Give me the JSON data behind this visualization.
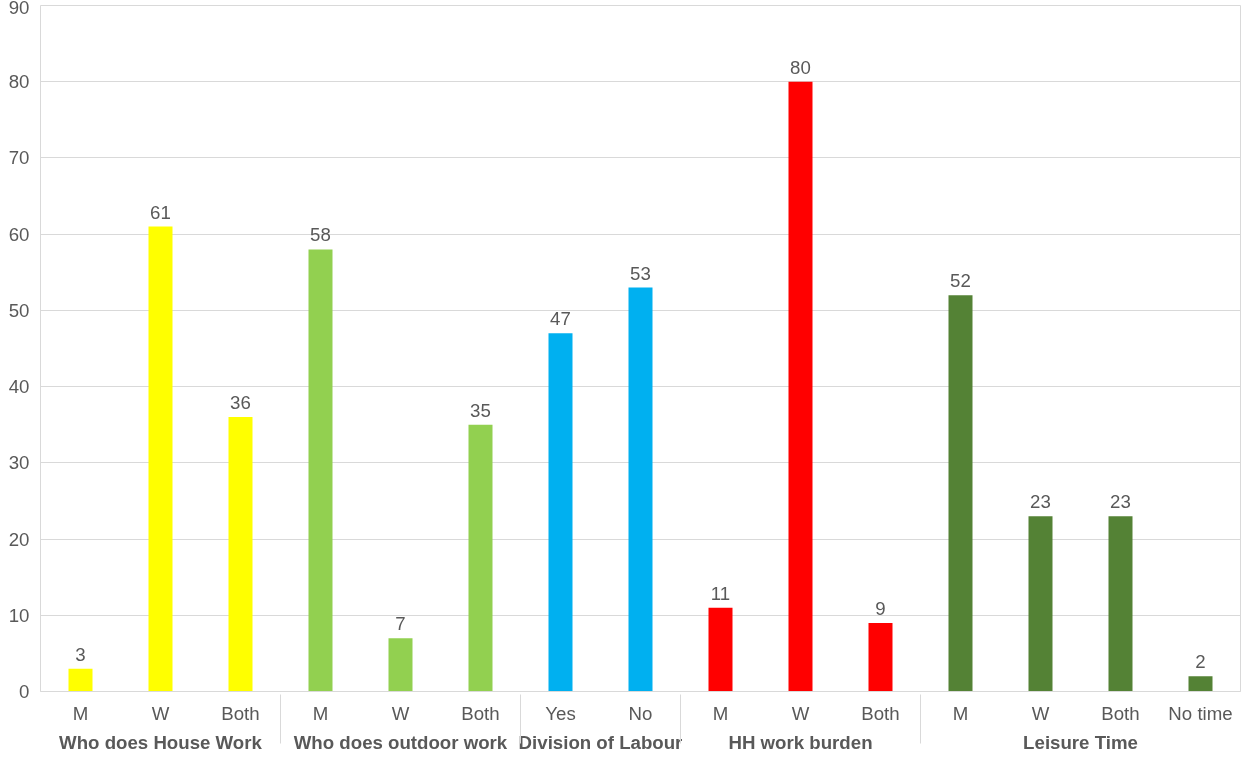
{
  "chart_data": {
    "type": "bar",
    "categories": [
      [
        "Who does House Work",
        "M"
      ],
      [
        null,
        "W"
      ],
      [
        null,
        "Both"
      ],
      [
        "Who does outdoor work",
        "M"
      ],
      [
        null,
        "W"
      ],
      [
        null,
        "Both"
      ],
      [
        "Division of Labour",
        "Yes"
      ],
      [
        null,
        "No"
      ],
      [
        "HH work burden",
        "M"
      ],
      [
        null,
        "W"
      ],
      [
        null,
        "Both"
      ],
      [
        "Leisure Time",
        "M"
      ],
      [
        null,
        "W"
      ],
      [
        null,
        "Both"
      ],
      [
        null,
        "No time"
      ]
    ],
    "values": [
      3,
      61,
      36,
      58,
      7,
      35,
      47,
      53,
      11,
      80,
      9,
      52,
      23,
      23,
      2
    ],
    "colors": [
      "#ffff00",
      "#ffff00",
      "#ffff00",
      "#92d050",
      "#92d050",
      "#92d050",
      "#00b0f0",
      "#00b0f0",
      "#ff0000",
      "#ff0000",
      "#ff0000",
      "#548235",
      "#548235",
      "#548235",
      "#548235"
    ],
    "ylim": [
      0,
      90
    ],
    "yticks": [
      0,
      10,
      20,
      30,
      40,
      50,
      60,
      70,
      80,
      90
    ],
    "grid": "y",
    "data_labels": true
  }
}
